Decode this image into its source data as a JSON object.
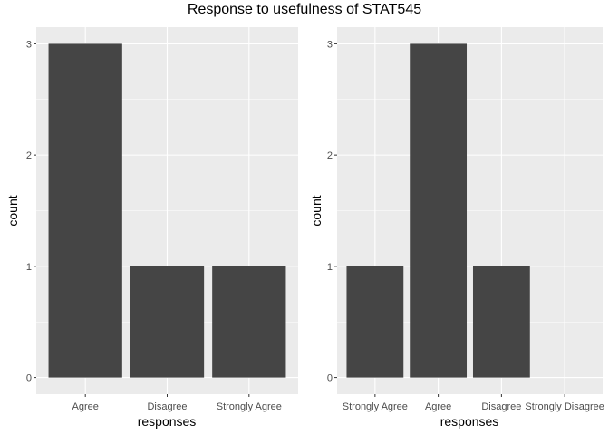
{
  "title": "Response to usefulness of STAT545",
  "colors": {
    "panel": "#ebebeb",
    "grid_major": "#ffffff",
    "bar": "#454545",
    "tick_text": "#4d4d4d"
  },
  "chart_data": [
    {
      "type": "bar",
      "title": "",
      "xlabel": "responses",
      "ylabel": "count",
      "categories": [
        "Agree",
        "Disagree",
        "Strongly Agree"
      ],
      "values": [
        3,
        1,
        1
      ],
      "yticks": [
        0,
        1,
        2,
        3
      ],
      "ylim": [
        -0.15,
        3.15
      ],
      "grid": true,
      "legend": "none"
    },
    {
      "type": "bar",
      "title": "",
      "xlabel": "responses",
      "ylabel": "count",
      "categories": [
        "Strongly Agree",
        "Agree",
        "Disagree",
        "Strongly Disagree"
      ],
      "values": [
        1,
        3,
        1,
        0
      ],
      "yticks": [
        0,
        1,
        2,
        3
      ],
      "ylim": [
        -0.15,
        3.15
      ],
      "grid": true,
      "legend": "none"
    }
  ]
}
